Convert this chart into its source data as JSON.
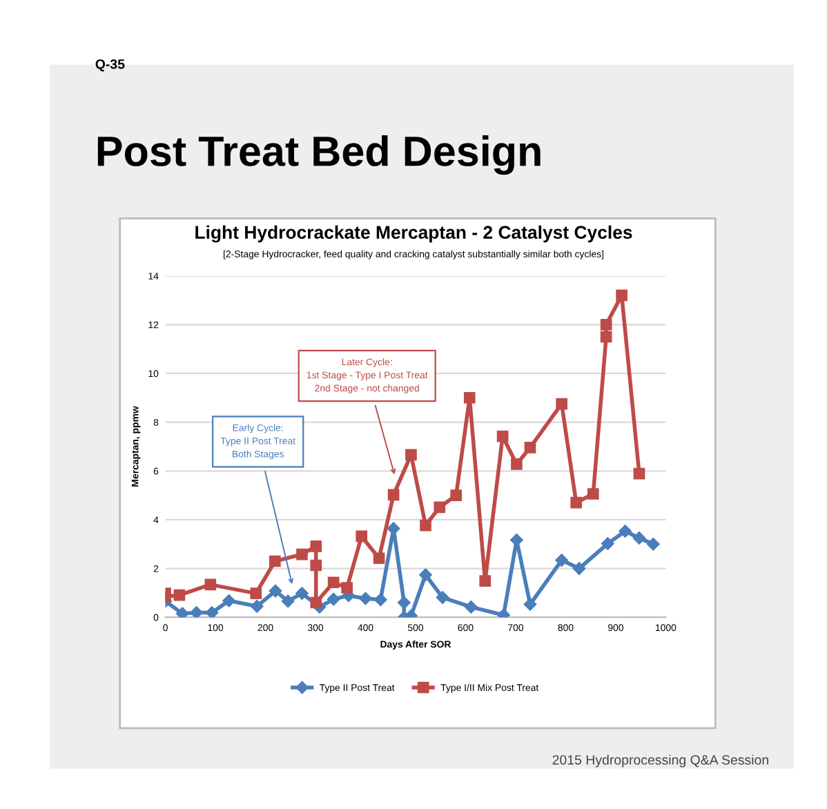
{
  "chart_data": {
    "type": "line",
    "title": "Light Hydrocrackate Mercaptan - 2 Catalyst Cycles",
    "subtitle": "[2-Stage Hydrocracker, feed quality and cracking catalyst substantially similar both cycles]",
    "xlabel": "Days After SOR",
    "ylabel": "Mercaptan, ppmw",
    "annotations": [
      "Q-35",
      "Post Treat Bed Design",
      "2015 Hydroprocessing Q&A Session",
      {
        "text": "Later Cycle:\n1st Stage - Type I Post Treat\n2nd Stage - not changed",
        "x": 460,
        "y": 5.7
      },
      {
        "text": "Early Cycle:\nType II Post Treat\nBoth Stages",
        "x": 255,
        "y": 1.2
      }
    ],
    "xlim": [
      0,
      1000
    ],
    "xticks": [
      0,
      100,
      200,
      300,
      400,
      500,
      600,
      700,
      800,
      900,
      1000
    ],
    "ylim": [
      0,
      14
    ],
    "yticks": [
      0,
      2,
      4,
      6,
      8,
      10,
      12,
      14
    ],
    "grid": "y",
    "legend": "bottom",
    "series": [
      {
        "name": "Type II Post Treat",
        "color": "#4a7ebb",
        "marker": "diamond",
        "x": [
          0,
          34,
          62,
          93,
          127,
          183,
          220,
          245,
          273,
          308,
          336,
          366,
          400,
          430,
          456,
          477,
          477,
          491,
          520,
          554,
          611,
          676,
          702,
          729,
          792,
          827,
          884,
          919,
          947,
          975
        ],
        "values": [
          0.66,
          0.15,
          0.19,
          0.19,
          0.68,
          0.45,
          1.08,
          0.66,
          0.98,
          0.42,
          0.74,
          0.89,
          0.77,
          0.72,
          3.64,
          0.6,
          0,
          0.06,
          1.74,
          0.81,
          0.42,
          0.09,
          3.17,
          0.53,
          2.34,
          2.0,
          3.02,
          3.53,
          3.25,
          3.0
        ]
      },
      {
        "name": "Type I/II Mix Post Treat",
        "color": "#be4b48",
        "marker": "square",
        "x": [
          0,
          0,
          28,
          90,
          181,
          219,
          273,
          301,
          301,
          301,
          336,
          363,
          392,
          427,
          456,
          491,
          520,
          548,
          581,
          608,
          639,
          674,
          702,
          729,
          792,
          821,
          855,
          881,
          881,
          912,
          947
        ],
        "values": [
          0.98,
          0.85,
          0.91,
          1.34,
          0.98,
          2.3,
          2.58,
          2.91,
          2.13,
          0.6,
          1.43,
          1.21,
          3.32,
          2.42,
          5.02,
          6.66,
          3.77,
          4.51,
          5.0,
          9.0,
          1.49,
          7.42,
          6.28,
          6.96,
          8.75,
          4.7,
          5.06,
          11.5,
          12.0,
          13.2,
          5.89
        ]
      }
    ]
  }
}
